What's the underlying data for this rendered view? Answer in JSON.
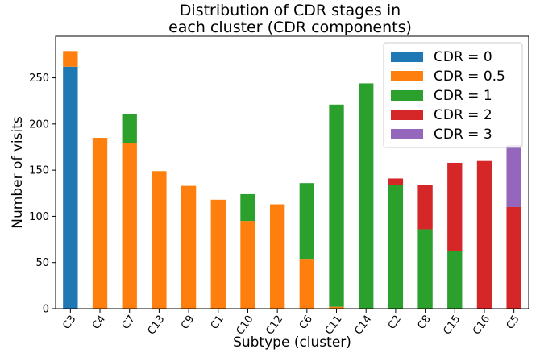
{
  "chart_data": {
    "type": "bar",
    "stacked": true,
    "title": "Distribution of CDR stages in\neach cluster (CDR components)",
    "xlabel": "Subtype (cluster)",
    "ylabel": "Number of visits",
    "ylim": [
      0,
      295
    ],
    "yticks": [
      0,
      50,
      100,
      150,
      200,
      250
    ],
    "grid": false,
    "legend_position": "top-right",
    "categories": [
      "C3",
      "C4",
      "C7",
      "C13",
      "C9",
      "C1",
      "C10",
      "C12",
      "C6",
      "C11",
      "C14",
      "C2",
      "C8",
      "C15",
      "C16",
      "C5"
    ],
    "series": [
      {
        "name": "CDR = 0",
        "color": "#1f77b4",
        "values": [
          262,
          0,
          0,
          0,
          0,
          0,
          0,
          0,
          0,
          0,
          0,
          0,
          0,
          0,
          0,
          0
        ]
      },
      {
        "name": "CDR = 0.5",
        "color": "#ff7f0e",
        "values": [
          17,
          185,
          179,
          149,
          133,
          118,
          95,
          113,
          54,
          2,
          0,
          0,
          0,
          0,
          0,
          0
        ]
      },
      {
        "name": "CDR = 1",
        "color": "#2ca02c",
        "values": [
          0,
          0,
          32,
          0,
          0,
          0,
          29,
          0,
          82,
          219,
          244,
          134,
          86,
          62,
          0,
          0
        ]
      },
      {
        "name": "CDR = 2",
        "color": "#d62728",
        "values": [
          0,
          0,
          0,
          0,
          0,
          0,
          0,
          0,
          0,
          0,
          0,
          7,
          48,
          96,
          160,
          110
        ]
      },
      {
        "name": "CDR = 3",
        "color": "#9467bd",
        "values": [
          0,
          0,
          0,
          0,
          0,
          0,
          0,
          0,
          0,
          0,
          0,
          0,
          0,
          0,
          0,
          67
        ]
      }
    ]
  }
}
